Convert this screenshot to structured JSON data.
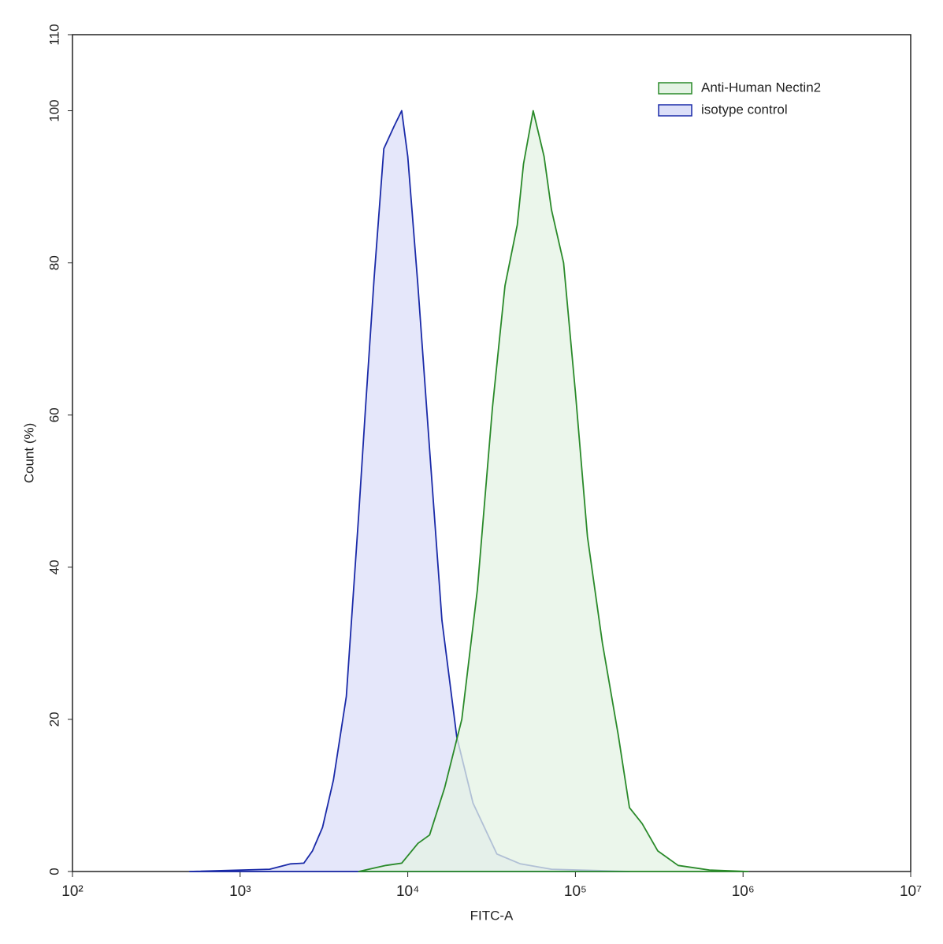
{
  "chart_data": {
    "type": "histogram-overlay",
    "x_label": "FITC-A",
    "y_label": "Count  (%)",
    "xscale": "log",
    "xlim": [
      100,
      10000000
    ],
    "xticks": [
      {
        "value": 100,
        "label": "10²"
      },
      {
        "value": 1000,
        "label": "10³"
      },
      {
        "value": 10000,
        "label": "10⁴"
      },
      {
        "value": 100000,
        "label": "10⁵"
      },
      {
        "value": 1000000,
        "label": "10⁶"
      },
      {
        "value": 10000000,
        "label": "10⁷"
      }
    ],
    "ylim": [
      0,
      110
    ],
    "yticks": [
      0,
      20,
      40,
      60,
      80,
      100,
      110
    ],
    "legend": "upper right",
    "series": [
      {
        "name": "Anti-Human Nectin2",
        "color": "#2a8a2a",
        "fill_color": "#e4f3e4",
        "x": [
          5100,
          7400,
          9200,
          11500,
          13500,
          16600,
          21000,
          26000,
          32000,
          38000,
          45000,
          49000,
          56000,
          65000,
          72000,
          85000,
          100000,
          118000,
          145000,
          180000,
          210000,
          250000,
          310000,
          410000,
          630000,
          1070000
        ],
        "values": [
          0,
          0.8,
          1.1,
          3.7,
          4.8,
          11,
          20,
          37,
          61,
          77,
          85,
          93,
          100,
          94,
          87,
          80,
          63,
          44,
          30,
          18,
          8.4,
          6.3,
          2.7,
          0.8,
          0.2,
          0
        ]
      },
      {
        "name": "isotype control",
        "color": "#1a2aa8",
        "fill_color": "#dcdff8",
        "x": [
          500,
          1500,
          2000,
          2400,
          2700,
          3100,
          3600,
          4300,
          5100,
          5600,
          6300,
          7200,
          8300,
          9200,
          10000,
          11500,
          13500,
          16000,
          19600,
          24500,
          34000,
          47000,
          72000,
          210000
        ],
        "values": [
          0,
          0.3,
          1,
          1.1,
          2.7,
          5.8,
          12,
          23,
          47,
          61,
          78,
          95,
          98,
          100,
          94,
          77,
          55.5,
          33,
          17.7,
          9,
          2.3,
          1,
          0.3,
          0
        ]
      }
    ]
  }
}
